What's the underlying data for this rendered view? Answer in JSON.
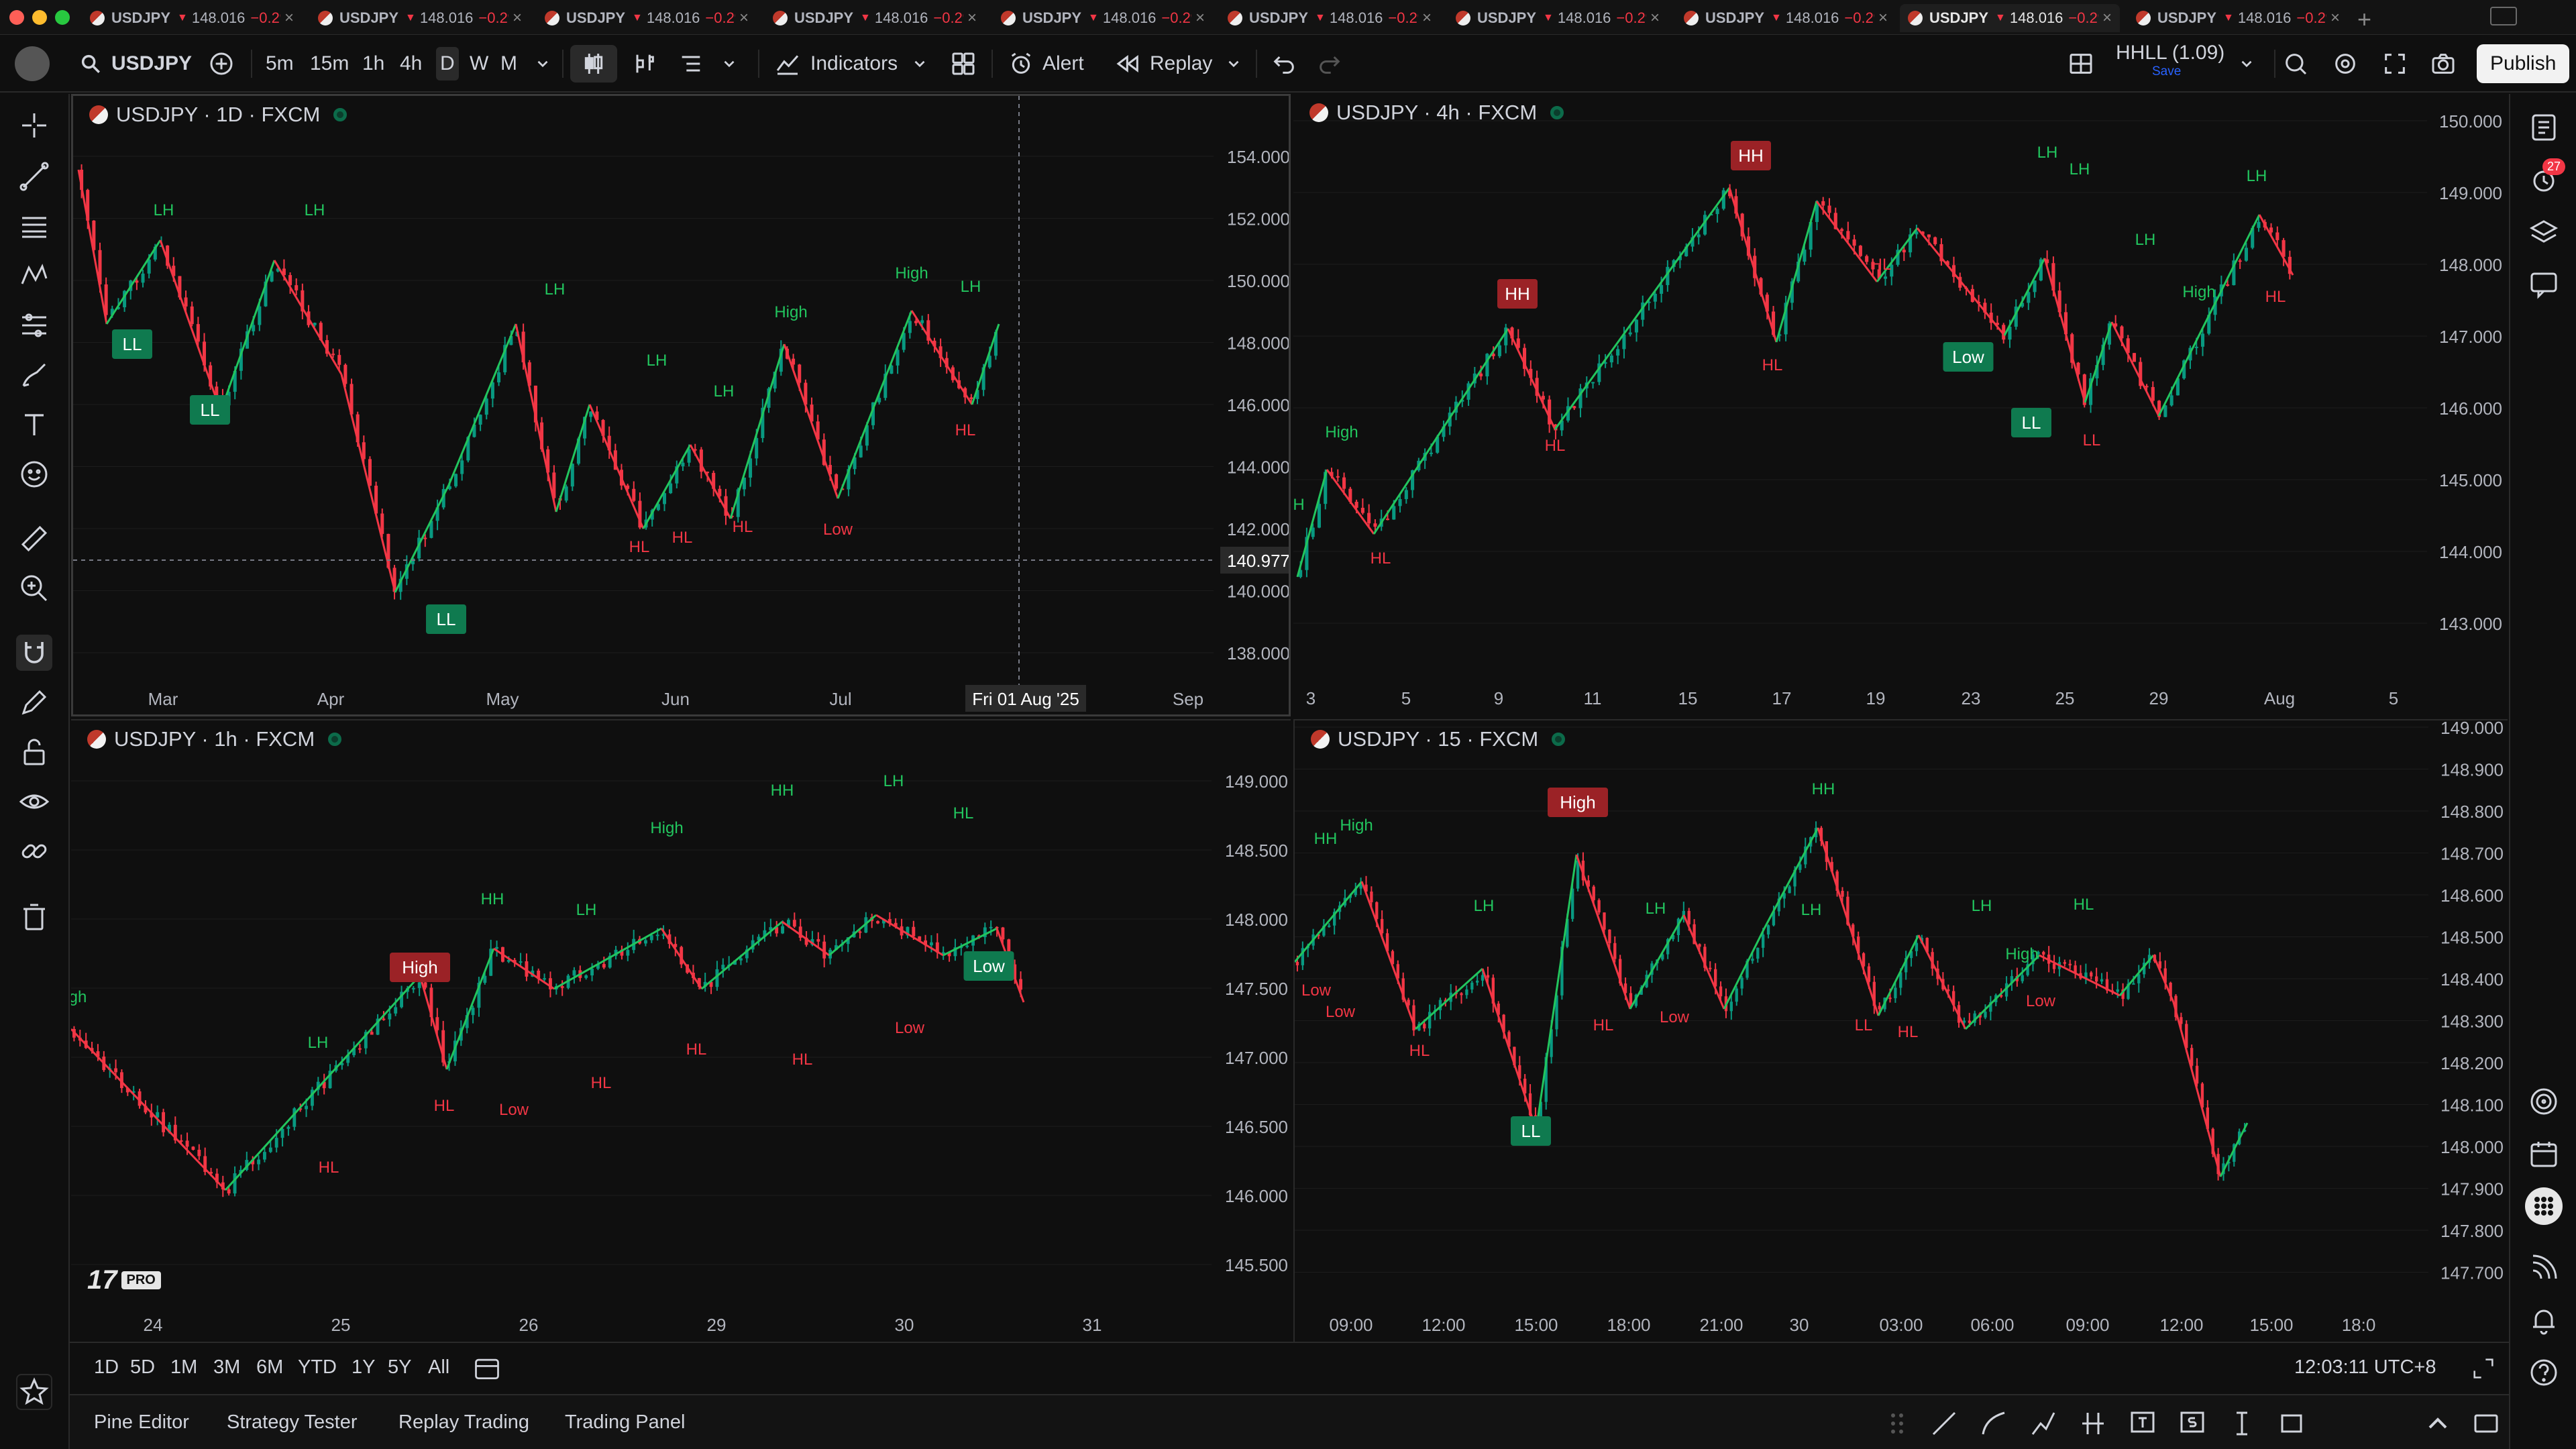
{
  "tabs": [
    {
      "symbol": "USDJPY",
      "price": "148.016",
      "change": "−0.2%"
    },
    {
      "symbol": "USDJPY",
      "price": "148.016",
      "change": "−0.2%"
    },
    {
      "symbol": "USDJPY",
      "price": "148.016",
      "change": "−0.2%"
    },
    {
      "symbol": "USDJPY",
      "price": "148.016",
      "change": "−0.2%"
    },
    {
      "symbol": "USDJPY",
      "price": "148.016",
      "change": "−0.2%"
    },
    {
      "symbol": "USDJPY",
      "price": "148.016",
      "change": "−0.2%"
    },
    {
      "symbol": "USDJPY",
      "price": "148.016",
      "change": "−0.2%"
    },
    {
      "symbol": "USDJPY",
      "price": "148.016",
      "change": "−0.2%"
    },
    {
      "symbol": "USDJPY",
      "price": "148.016",
      "change": "−0.2%",
      "active": true
    },
    {
      "symbol": "USDJPY",
      "price": "148.016",
      "change": "−0.2%"
    }
  ],
  "toolbar": {
    "symbol": "USDJPY",
    "intervals": [
      "5m",
      "15m",
      "1h",
      "4h",
      "D",
      "W",
      "M"
    ],
    "active_interval": "D",
    "indicators_label": "Indicators",
    "alert_label": "Alert",
    "replay_label": "Replay",
    "layout_name": "HHLL (1.09)",
    "layout_save": "Save",
    "publish_label": "Publish"
  },
  "colors": {
    "bull": "#089981",
    "bear": "#f23645",
    "up_line": "#22c55e",
    "down_line": "#f23645",
    "label_up_bg": "#0f7a4f",
    "label_down_bg": "#9b2226",
    "bg": "#0f0f0f",
    "grid": "#1c1c1c"
  },
  "panes": [
    {
      "id": "p1",
      "title": "USDJPY · 1D · FXCM",
      "yticks": [
        "154.000",
        "152.000",
        "150.000",
        "148.000",
        "146.000",
        "144.000",
        "142.000",
        "140.000",
        "138.000"
      ],
      "xticks": [
        "Mar",
        "Apr",
        "May",
        "Jun",
        "Jul",
        "Sep"
      ],
      "crosshair_price": "140.977",
      "crosshair_date": "Fri 01 Aug '25",
      "labels": [
        "LL",
        "LL",
        "LL",
        "LH",
        "LH",
        "LH",
        "LH",
        "LH",
        "High",
        "High",
        "LH",
        "HL",
        "HL",
        "HL",
        "Low",
        "HL"
      ]
    },
    {
      "id": "p2",
      "title": "USDJPY · 4h · FXCM",
      "yticks": [
        "150.000",
        "149.000",
        "148.000",
        "147.000",
        "146.000",
        "145.000",
        "144.000",
        "143.000"
      ],
      "xticks": [
        "3",
        "5",
        "9",
        "11",
        "15",
        "17",
        "19",
        "23",
        "25",
        "29",
        "Aug",
        "5"
      ],
      "labels": [
        "HH",
        "HH",
        "Low",
        "LL",
        "High",
        "LH",
        "LH",
        "LH",
        "LH",
        "High",
        "H",
        "HL",
        "HL",
        "HL",
        "HL",
        "LL",
        "HL"
      ]
    },
    {
      "id": "p3",
      "title": "USDJPY · 1h · FXCM",
      "yticks": [
        "149.000",
        "148.500",
        "148.000",
        "147.500",
        "147.000",
        "146.500",
        "146.000",
        "145.500"
      ],
      "xticks": [
        "24",
        "25",
        "26",
        "29",
        "30",
        "31"
      ],
      "labels": [
        "High",
        "Low",
        "gh",
        "LH",
        "HH",
        "LH",
        "High",
        "HH",
        "LH",
        "HL",
        "HL",
        "HL",
        "Low",
        "HL",
        "HL",
        "HL",
        "Low"
      ]
    },
    {
      "id": "p4",
      "title": "USDJPY · 15 · FXCM",
      "yticks": [
        "149.000",
        "148.900",
        "148.800",
        "148.700",
        "148.600",
        "148.500",
        "148.400",
        "148.300",
        "148.200",
        "148.100",
        "148.000",
        "147.900",
        "147.800",
        "147.700"
      ],
      "xticks": [
        "09:00",
        "12:00",
        "15:00",
        "18:00",
        "21:00",
        "30",
        "03:00",
        "06:00",
        "09:00",
        "12:00",
        "15:00",
        "18:0"
      ],
      "labels": [
        "High",
        "LL",
        "High",
        "HH",
        "LH",
        "HH",
        "LH",
        "LH",
        "LH",
        "High",
        "HL",
        "Low",
        "Low",
        "HL",
        "HL",
        "Low",
        "LL",
        "HL",
        "Low"
      ]
    }
  ],
  "ranges": [
    "1D",
    "5D",
    "1M",
    "3M",
    "6M",
    "YTD",
    "1Y",
    "5Y",
    "All"
  ],
  "clock": "12:03:11 UTC+8",
  "bottom_tabs": [
    "Pine Editor",
    "Strategy Tester",
    "Replay Trading",
    "Trading Panel"
  ],
  "logo_text": "PRO",
  "badge_count": "27"
}
